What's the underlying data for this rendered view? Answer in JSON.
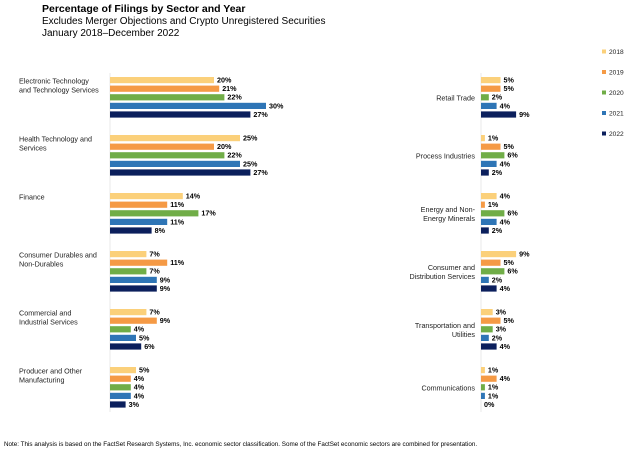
{
  "chart_data": {
    "type": "bar",
    "orientation": "horizontal",
    "title": "Percentage of Filings by Sector and Year",
    "subtitle": "Excludes Merger Objections and Crypto Unregistered Securities",
    "period": "January 2018–December 2022",
    "value_suffix": "%",
    "legend_position": "right",
    "series": [
      {
        "name": "2018",
        "color": "#FBD07A"
      },
      {
        "name": "2019",
        "color": "#F59A45"
      },
      {
        "name": "2020",
        "color": "#70AD47"
      },
      {
        "name": "2021",
        "color": "#2E75B6"
      },
      {
        "name": "2022",
        "color": "#0B1F5C"
      }
    ],
    "panels": [
      {
        "categories": [
          {
            "label": [
              "Electronic Technology",
              "and Technology Services"
            ],
            "values": [
              20,
              21,
              22,
              30,
              27
            ]
          },
          {
            "label": [
              "Health Technology and",
              "Services"
            ],
            "values": [
              25,
              20,
              22,
              25,
              27
            ]
          },
          {
            "label": [
              "Finance"
            ],
            "values": [
              14,
              11,
              17,
              11,
              8
            ]
          },
          {
            "label": [
              "Consumer Durables and",
              "Non-Durables"
            ],
            "values": [
              7,
              11,
              7,
              9,
              9
            ]
          },
          {
            "label": [
              "Commercial and",
              "Industrial Services"
            ],
            "values": [
              7,
              9,
              4,
              5,
              6
            ]
          },
          {
            "label": [
              "Producer and Other",
              "Manufacturing"
            ],
            "values": [
              5,
              4,
              4,
              4,
              3
            ]
          }
        ]
      },
      {
        "categories": [
          {
            "label": [
              "Retail Trade"
            ],
            "values": [
              5,
              5,
              2,
              4,
              9
            ]
          },
          {
            "label": [
              "Process Industries"
            ],
            "values": [
              1,
              5,
              6,
              4,
              2
            ]
          },
          {
            "label": [
              "Energy and Non-",
              "Energy Minerals"
            ],
            "values": [
              4,
              1,
              6,
              4,
              2
            ]
          },
          {
            "label": [
              "Consumer and",
              "Distribution Services"
            ],
            "values": [
              9,
              5,
              6,
              2,
              4
            ]
          },
          {
            "label": [
              "Transportation and",
              "Utilities"
            ],
            "values": [
              3,
              5,
              3,
              2,
              4
            ]
          },
          {
            "label": [
              "Communications"
            ],
            "values": [
              1,
              4,
              1,
              1,
              0
            ]
          }
        ]
      }
    ]
  },
  "note": "Note: This analysis is based on the FactSet Research Systems, Inc. economic sector classification. Some of the FactSet economic sectors are combined for presentation."
}
